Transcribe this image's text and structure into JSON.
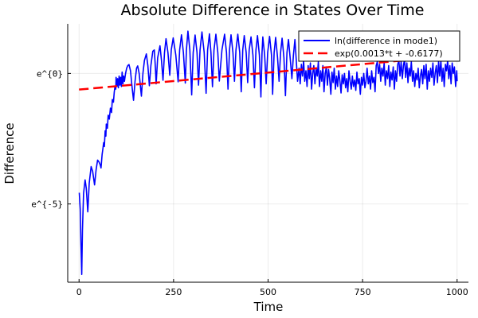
{
  "chart_data": {
    "type": "line",
    "title": "Absolute Difference in States Over Time",
    "xlabel": "Time",
    "ylabel": "Difference",
    "xlim": [
      -30,
      1030
    ],
    "ylim_ln": [
      -8.0,
      1.9
    ],
    "x_ticks": [
      0,
      250,
      500,
      750,
      1000
    ],
    "x_tick_labels": [
      "0",
      "250",
      "500",
      "750",
      "1000"
    ],
    "y_ticks_ln": [
      0,
      -5
    ],
    "y_tick_labels": [
      "e^{0}",
      "e^{-5}"
    ],
    "y_scale": "log (natural)",
    "grid": true,
    "legend_position": "top-right",
    "series": [
      {
        "name": "ln(difference in mode1)",
        "color": "#0000ff",
        "style": "solid",
        "points_ln": [
          [
            0.6,
            -4.57
          ],
          [
            3,
            -5.2
          ],
          [
            5,
            -6.5
          ],
          [
            7,
            -7.7
          ],
          [
            9,
            -6.0
          ],
          [
            12,
            -4.6
          ],
          [
            16,
            -4.08
          ],
          [
            19,
            -4.4
          ],
          [
            23,
            -5.3
          ],
          [
            27,
            -4.2
          ],
          [
            32,
            -3.57
          ],
          [
            36,
            -3.75
          ],
          [
            41,
            -4.27
          ],
          [
            45,
            -3.7
          ],
          [
            49,
            -3.32
          ],
          [
            53,
            -3.4
          ],
          [
            56,
            -3.5
          ],
          [
            58,
            -3.62
          ],
          [
            61,
            -3.1
          ],
          [
            63,
            -2.9
          ],
          [
            65,
            -2.65
          ],
          [
            67,
            -2.8
          ],
          [
            69,
            -2.2
          ],
          [
            71,
            -2.4
          ],
          [
            72,
            -1.94
          ],
          [
            75,
            -2.1
          ],
          [
            77,
            -1.6
          ],
          [
            80,
            -1.75
          ],
          [
            83,
            -1.33
          ],
          [
            86,
            -1.5
          ],
          [
            88,
            -1.0
          ],
          [
            91,
            -1.1
          ],
          [
            93,
            -0.72
          ],
          [
            95,
            -0.5
          ],
          [
            97,
            -0.6
          ],
          [
            98,
            -0.15
          ],
          [
            100,
            -0.5
          ],
          [
            102,
            -0.2
          ],
          [
            104,
            -0.55
          ],
          [
            106,
            -0.1
          ],
          [
            108,
            -0.45
          ],
          [
            110,
            -0.15
          ],
          [
            112,
            -0.5
          ],
          [
            114,
            0.05
          ],
          [
            116,
            -0.4
          ],
          [
            118,
            -0.1
          ],
          [
            120,
            -0.3
          ],
          [
            123,
            0.0
          ],
          [
            126,
            0.2
          ],
          [
            129,
            0.3
          ],
          [
            132,
            0.34
          ],
          [
            136,
            0.1
          ],
          [
            140,
            -0.5
          ],
          [
            144,
            -1.03
          ],
          [
            148,
            -0.3
          ],
          [
            152,
            0.2
          ],
          [
            155,
            0.29
          ],
          [
            159,
            0.0
          ],
          [
            163,
            -0.6
          ],
          [
            165,
            -0.87
          ],
          [
            169,
            0.0
          ],
          [
            173,
            0.5
          ],
          [
            178,
            0.75
          ],
          [
            182,
            0.3
          ],
          [
            186,
            -0.47
          ],
          [
            190,
            0.3
          ],
          [
            195,
            0.85
          ],
          [
            199,
            0.9
          ],
          [
            202,
            0.2
          ],
          [
            204,
            -0.4
          ],
          [
            208,
            0.6
          ],
          [
            214,
            1.06
          ],
          [
            218,
            0.5
          ],
          [
            222,
            -0.26
          ],
          [
            226,
            0.8
          ],
          [
            230,
            1.33
          ],
          [
            235,
            0.8
          ],
          [
            240,
            -0.07
          ],
          [
            244,
            0.9
          ],
          [
            249,
            1.36
          ],
          [
            256,
            0.7
          ],
          [
            262,
            -0.32
          ],
          [
            266,
            0.9
          ],
          [
            271,
            1.48
          ],
          [
            276,
            0.8
          ],
          [
            281,
            -0.37
          ],
          [
            284,
            0.9
          ],
          [
            288,
            1.62
          ],
          [
            293,
            0.9
          ],
          [
            298,
            -0.82
          ],
          [
            302,
            0.8
          ],
          [
            307,
            1.47
          ],
          [
            312,
            0.8
          ],
          [
            316,
            -0.45
          ],
          [
            320,
            0.9
          ],
          [
            325,
            1.59
          ],
          [
            331,
            0.8
          ],
          [
            336,
            -0.76
          ],
          [
            340,
            0.9
          ],
          [
            345,
            1.52
          ],
          [
            349,
            0.8
          ],
          [
            353,
            -0.51
          ],
          [
            357,
            0.9
          ],
          [
            362,
            1.5
          ],
          [
            367,
            0.8
          ],
          [
            371,
            -0.29
          ],
          [
            378,
            0.9
          ],
          [
            385,
            1.5
          ],
          [
            390,
            0.8
          ],
          [
            394,
            -0.6
          ],
          [
            398,
            0.9
          ],
          [
            402,
            1.48
          ],
          [
            407,
            0.8
          ],
          [
            411,
            -0.3
          ],
          [
            415,
            0.9
          ],
          [
            420,
            1.5
          ],
          [
            425,
            0.8
          ],
          [
            429,
            -0.7
          ],
          [
            433,
            0.9
          ],
          [
            437,
            1.45
          ],
          [
            442,
            0.8
          ],
          [
            446,
            -0.35
          ],
          [
            450,
            0.9
          ],
          [
            455,
            1.4
          ],
          [
            460,
            0.7
          ],
          [
            464,
            -0.55
          ],
          [
            468,
            0.9
          ],
          [
            472,
            1.45
          ],
          [
            477,
            0.7
          ],
          [
            481,
            -0.9
          ],
          [
            484,
            0.8
          ],
          [
            486,
            1.4
          ],
          [
            491,
            0.7
          ],
          [
            495,
            -0.4
          ],
          [
            499,
            0.8
          ],
          [
            504,
            1.42
          ],
          [
            509,
            0.7
          ],
          [
            512,
            -0.8
          ],
          [
            516,
            0.8
          ],
          [
            520,
            1.38
          ],
          [
            525,
            0.6
          ],
          [
            529,
            -0.3
          ],
          [
            533,
            0.8
          ],
          [
            537,
            1.35
          ],
          [
            542,
            0.6
          ],
          [
            546,
            -0.85
          ],
          [
            550,
            0.8
          ],
          [
            554,
            1.3
          ],
          [
            559,
            0.5
          ],
          [
            563,
            -0.2
          ],
          [
            567,
            0.7
          ],
          [
            571,
            1.3
          ],
          [
            575,
            0.4
          ],
          [
            578,
            -0.3
          ],
          [
            582,
            0.2
          ],
          [
            585,
            -0.4
          ],
          [
            588,
            0.35
          ],
          [
            591,
            -0.1
          ],
          [
            594,
            0.5
          ],
          [
            597,
            -0.3
          ],
          [
            600,
            0.1
          ],
          [
            603,
            -0.5
          ],
          [
            606,
            0.3
          ],
          [
            609,
            -0.2
          ],
          [
            612,
            0.4
          ],
          [
            615,
            -0.6
          ],
          [
            618,
            0.0
          ],
          [
            621,
            0.3
          ],
          [
            624,
            -0.4
          ],
          [
            627,
            0.2
          ],
          [
            630,
            -0.1
          ],
          [
            633,
            0.45
          ],
          [
            636,
            -0.5
          ],
          [
            639,
            0.1
          ],
          [
            642,
            -0.3
          ],
          [
            645,
            0.3
          ],
          [
            648,
            -0.7
          ],
          [
            651,
            0.0
          ],
          [
            654,
            0.25
          ],
          [
            657,
            -0.45
          ],
          [
            660,
            0.15
          ],
          [
            663,
            -0.2
          ],
          [
            666,
            -0.8
          ],
          [
            669,
            0.05
          ],
          [
            672,
            -0.35
          ],
          [
            675,
            0.2
          ],
          [
            678,
            -0.6
          ],
          [
            681,
            -0.1
          ],
          [
            684,
            -0.5
          ],
          [
            687,
            0.1
          ],
          [
            690,
            -0.3
          ],
          [
            693,
            -0.75
          ],
          [
            696,
            -0.05
          ],
          [
            699,
            -0.4
          ],
          [
            702,
            0.0
          ],
          [
            705,
            -0.55
          ],
          [
            708,
            -0.2
          ],
          [
            711,
            -0.7
          ],
          [
            714,
            0.1
          ],
          [
            717,
            -0.3
          ],
          [
            720,
            -0.6
          ],
          [
            723,
            -0.1
          ],
          [
            726,
            -0.5
          ],
          [
            729,
            -0.25
          ],
          [
            732,
            -0.65
          ],
          [
            735,
            0.05
          ],
          [
            738,
            -0.4
          ],
          [
            741,
            -0.2
          ],
          [
            744,
            -0.8
          ],
          [
            747,
            -0.15
          ],
          [
            750,
            -0.45
          ],
          [
            753,
            0.0
          ],
          [
            756,
            -0.55
          ],
          [
            759,
            -0.3
          ],
          [
            762,
            0.2
          ],
          [
            765,
            -0.4
          ],
          [
            768,
            -0.1
          ],
          [
            771,
            -0.6
          ],
          [
            774,
            0.1
          ],
          [
            777,
            -0.35
          ],
          [
            780,
            -0.15
          ],
          [
            783,
            -0.7
          ],
          [
            786,
            0.3
          ],
          [
            789,
            0.45
          ],
          [
            792,
            0.0
          ],
          [
            795,
            0.35
          ],
          [
            798,
            -0.3
          ],
          [
            801,
            0.2
          ],
          [
            804,
            -0.1
          ],
          [
            807,
            0.4
          ],
          [
            810,
            -0.45
          ],
          [
            813,
            0.1
          ],
          [
            816,
            -0.2
          ],
          [
            819,
            0.3
          ],
          [
            822,
            -0.5
          ],
          [
            825,
            0.05
          ],
          [
            828,
            -0.25
          ],
          [
            831,
            0.25
          ],
          [
            834,
            -0.6
          ],
          [
            837,
            0.1
          ],
          [
            840,
            -0.3
          ],
          [
            843,
            0.35
          ],
          [
            846,
            0.5
          ],
          [
            849,
            -0.1
          ],
          [
            852,
            0.45
          ],
          [
            855,
            -0.2
          ],
          [
            858,
            0.3
          ],
          [
            861,
            0.55
          ],
          [
            864,
            -0.15
          ],
          [
            867,
            0.4
          ],
          [
            870,
            -0.35
          ],
          [
            873,
            0.2
          ],
          [
            876,
            -0.1
          ],
          [
            879,
            0.45
          ],
          [
            882,
            -0.3
          ],
          [
            885,
            0.1
          ],
          [
            888,
            -0.5
          ],
          [
            891,
            0.0
          ],
          [
            894,
            -0.25
          ],
          [
            897,
            0.2
          ],
          [
            900,
            -0.55
          ],
          [
            903,
            -0.1
          ],
          [
            906,
            0.15
          ],
          [
            909,
            -0.4
          ],
          [
            912,
            0.3
          ],
          [
            915,
            -0.2
          ],
          [
            918,
            0.35
          ],
          [
            921,
            -0.6
          ],
          [
            924,
            0.1
          ],
          [
            927,
            -0.3
          ],
          [
            930,
            0.2
          ],
          [
            933,
            -0.15
          ],
          [
            936,
            0.4
          ],
          [
            939,
            -0.45
          ],
          [
            942,
            0.0
          ],
          [
            945,
            0.3
          ],
          [
            948,
            -0.35
          ],
          [
            951,
            0.45
          ],
          [
            954,
            -0.1
          ],
          [
            957,
            0.5
          ],
          [
            960,
            -0.3
          ],
          [
            963,
            0.2
          ],
          [
            966,
            -0.5
          ],
          [
            969,
            0.35
          ],
          [
            972,
            0.1
          ],
          [
            975,
            0.5
          ],
          [
            978,
            -0.2
          ],
          [
            981,
            0.3
          ],
          [
            984,
            -0.4
          ],
          [
            987,
            0.4
          ],
          [
            990,
            0.0
          ],
          [
            993,
            0.25
          ],
          [
            996,
            -0.5
          ],
          [
            999,
            0.1
          ],
          [
            1000,
            -0.3
          ]
        ]
      },
      {
        "name": "exp(0.0013*t + -0.6177)",
        "color": "#ff0000",
        "style": "dashed",
        "slope": 0.0013,
        "intercept": -0.6177,
        "t_range": [
          0,
          1000
        ]
      }
    ]
  }
}
